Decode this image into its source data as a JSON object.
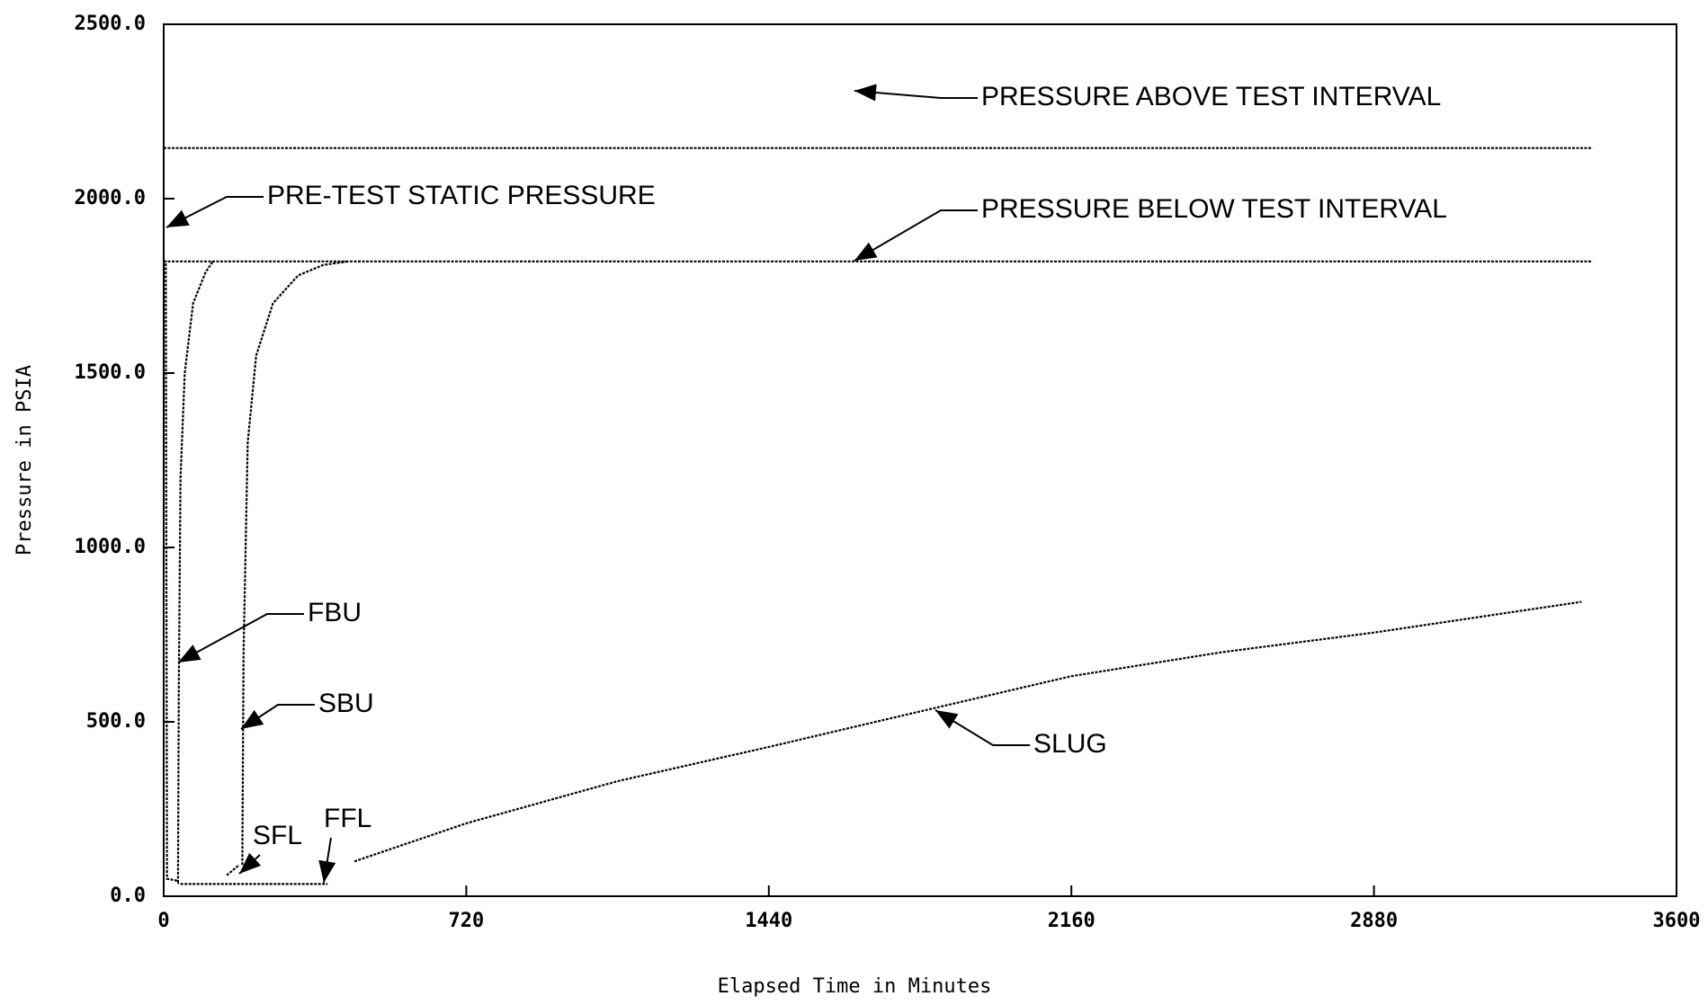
{
  "chart_data": {
    "type": "line",
    "xlabel": "Elapsed Time in Minutes",
    "ylabel": "Pressure in PSIA",
    "xlim": [
      0,
      3600
    ],
    "xticks": [
      0,
      720,
      1440,
      2160,
      2880,
      3600
    ],
    "ylim": [
      0,
      2500
    ],
    "yticks": [
      {
        "value": 0,
        "label": "0.0"
      },
      {
        "value": 500,
        "label": "500.0"
      },
      {
        "value": 1000,
        "label": "1000.0"
      },
      {
        "value": 1500,
        "label": "1500.0"
      },
      {
        "value": 2000,
        "label": "2000.0"
      },
      {
        "value": 2500,
        "label": "2500.0"
      }
    ],
    "series": [
      {
        "color": "#000000",
        "x": [
          0,
          3400
        ],
        "values": [
          2145,
          2145
        ]
      },
      {
        "color": "#000000",
        "x": [
          0,
          3400
        ],
        "values": [
          1820,
          1820
        ]
      },
      {
        "color": "#000000",
        "x": [
          0,
          5,
          8,
          30,
          34,
          36,
          40,
          50,
          70,
          100,
          117,
          120,
          null,
          150,
          180,
          null,
          187,
          190,
          200,
          220,
          260,
          320,
          380,
          440,
          null,
          40,
          390
        ],
        "values": [
          1820,
          1820,
          50,
          45,
          40,
          600,
          1200,
          1500,
          1700,
          1790,
          1820,
          1820,
          null,
          60,
          90,
          null,
          90,
          700,
          1300,
          1550,
          1700,
          1780,
          1810,
          1820,
          null,
          35,
          35
        ]
      },
      {
        "color": "#000000",
        "x": [
          454,
          720,
          1080,
          1440,
          1800,
          2160,
          2520,
          2880,
          3374
        ],
        "values": [
          100,
          209,
          330,
          428,
          530,
          631,
          700,
          756,
          844
        ]
      }
    ],
    "annotations": [
      "PRESSURE ABOVE TEST INTERVAL",
      "PRE-TEST STATIC PRESSURE",
      "PRESSURE BELOW TEST INTERVAL",
      "FBU",
      "SBU",
      "SFL",
      "FFL",
      "SLUG"
    ]
  }
}
